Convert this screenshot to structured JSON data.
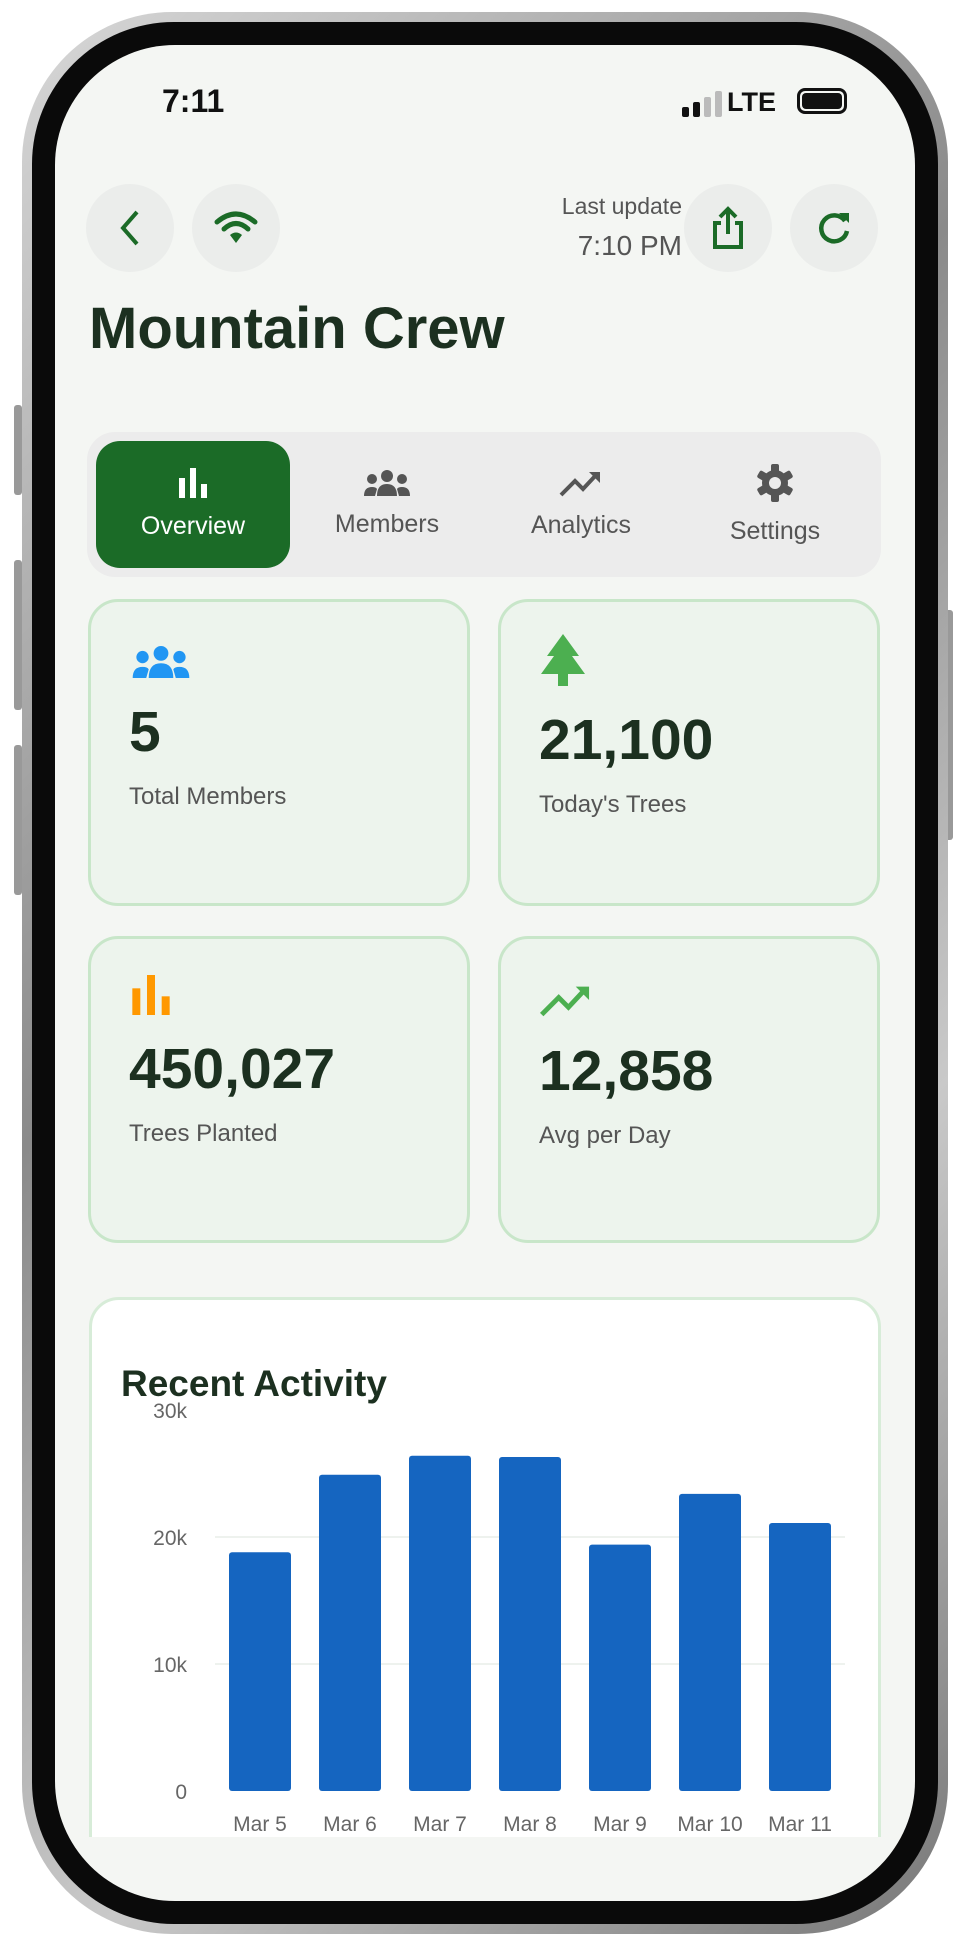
{
  "status": {
    "time": "7:11",
    "network": "LTE",
    "signal_bars": 2
  },
  "header": {
    "last_update_label": "Last update",
    "last_update_time": "7:10 PM",
    "icons": [
      "back-chevron-icon",
      "wifi-icon",
      "share-icon",
      "refresh-icon"
    ]
  },
  "page": {
    "title": "Mountain Crew"
  },
  "tabs": [
    {
      "label": "Overview",
      "icon": "bar-chart-icon",
      "active": true
    },
    {
      "label": "Members",
      "icon": "group-icon"
    },
    {
      "label": "Analytics",
      "icon": "trending-up-icon"
    },
    {
      "label": "Settings",
      "icon": "gear-icon"
    }
  ],
  "stats": [
    {
      "value": "5",
      "label": "Total Members",
      "icon": "group-icon",
      "color": "#2196f3"
    },
    {
      "value": "21,100",
      "label": "Today's Trees",
      "icon": "tree-icon",
      "color": "#4caf50"
    },
    {
      "value": "450,027",
      "label": "Trees Planted",
      "icon": "bar-chart-icon",
      "color": "#ff9800"
    },
    {
      "value": "12,858",
      "label": "Avg per Day",
      "icon": "trending-up-icon",
      "color": "#4caf50"
    }
  ],
  "colors": {
    "accent": "#1b6b27",
    "bar": "#1565c0"
  },
  "chart_data": {
    "type": "bar",
    "title": "Recent Activity",
    "categories": [
      "Mar 5",
      "Mar 6",
      "Mar 7",
      "Mar 8",
      "Mar 9",
      "Mar 10",
      "Mar 11"
    ],
    "values": [
      18800,
      24900,
      26400,
      26300,
      19400,
      23400,
      21100
    ],
    "ylim": [
      0,
      30000
    ],
    "yticks": [
      0,
      10000,
      20000,
      30000
    ],
    "ytick_labels": [
      "0",
      "10k",
      "20k",
      "30k"
    ],
    "grid": true
  }
}
